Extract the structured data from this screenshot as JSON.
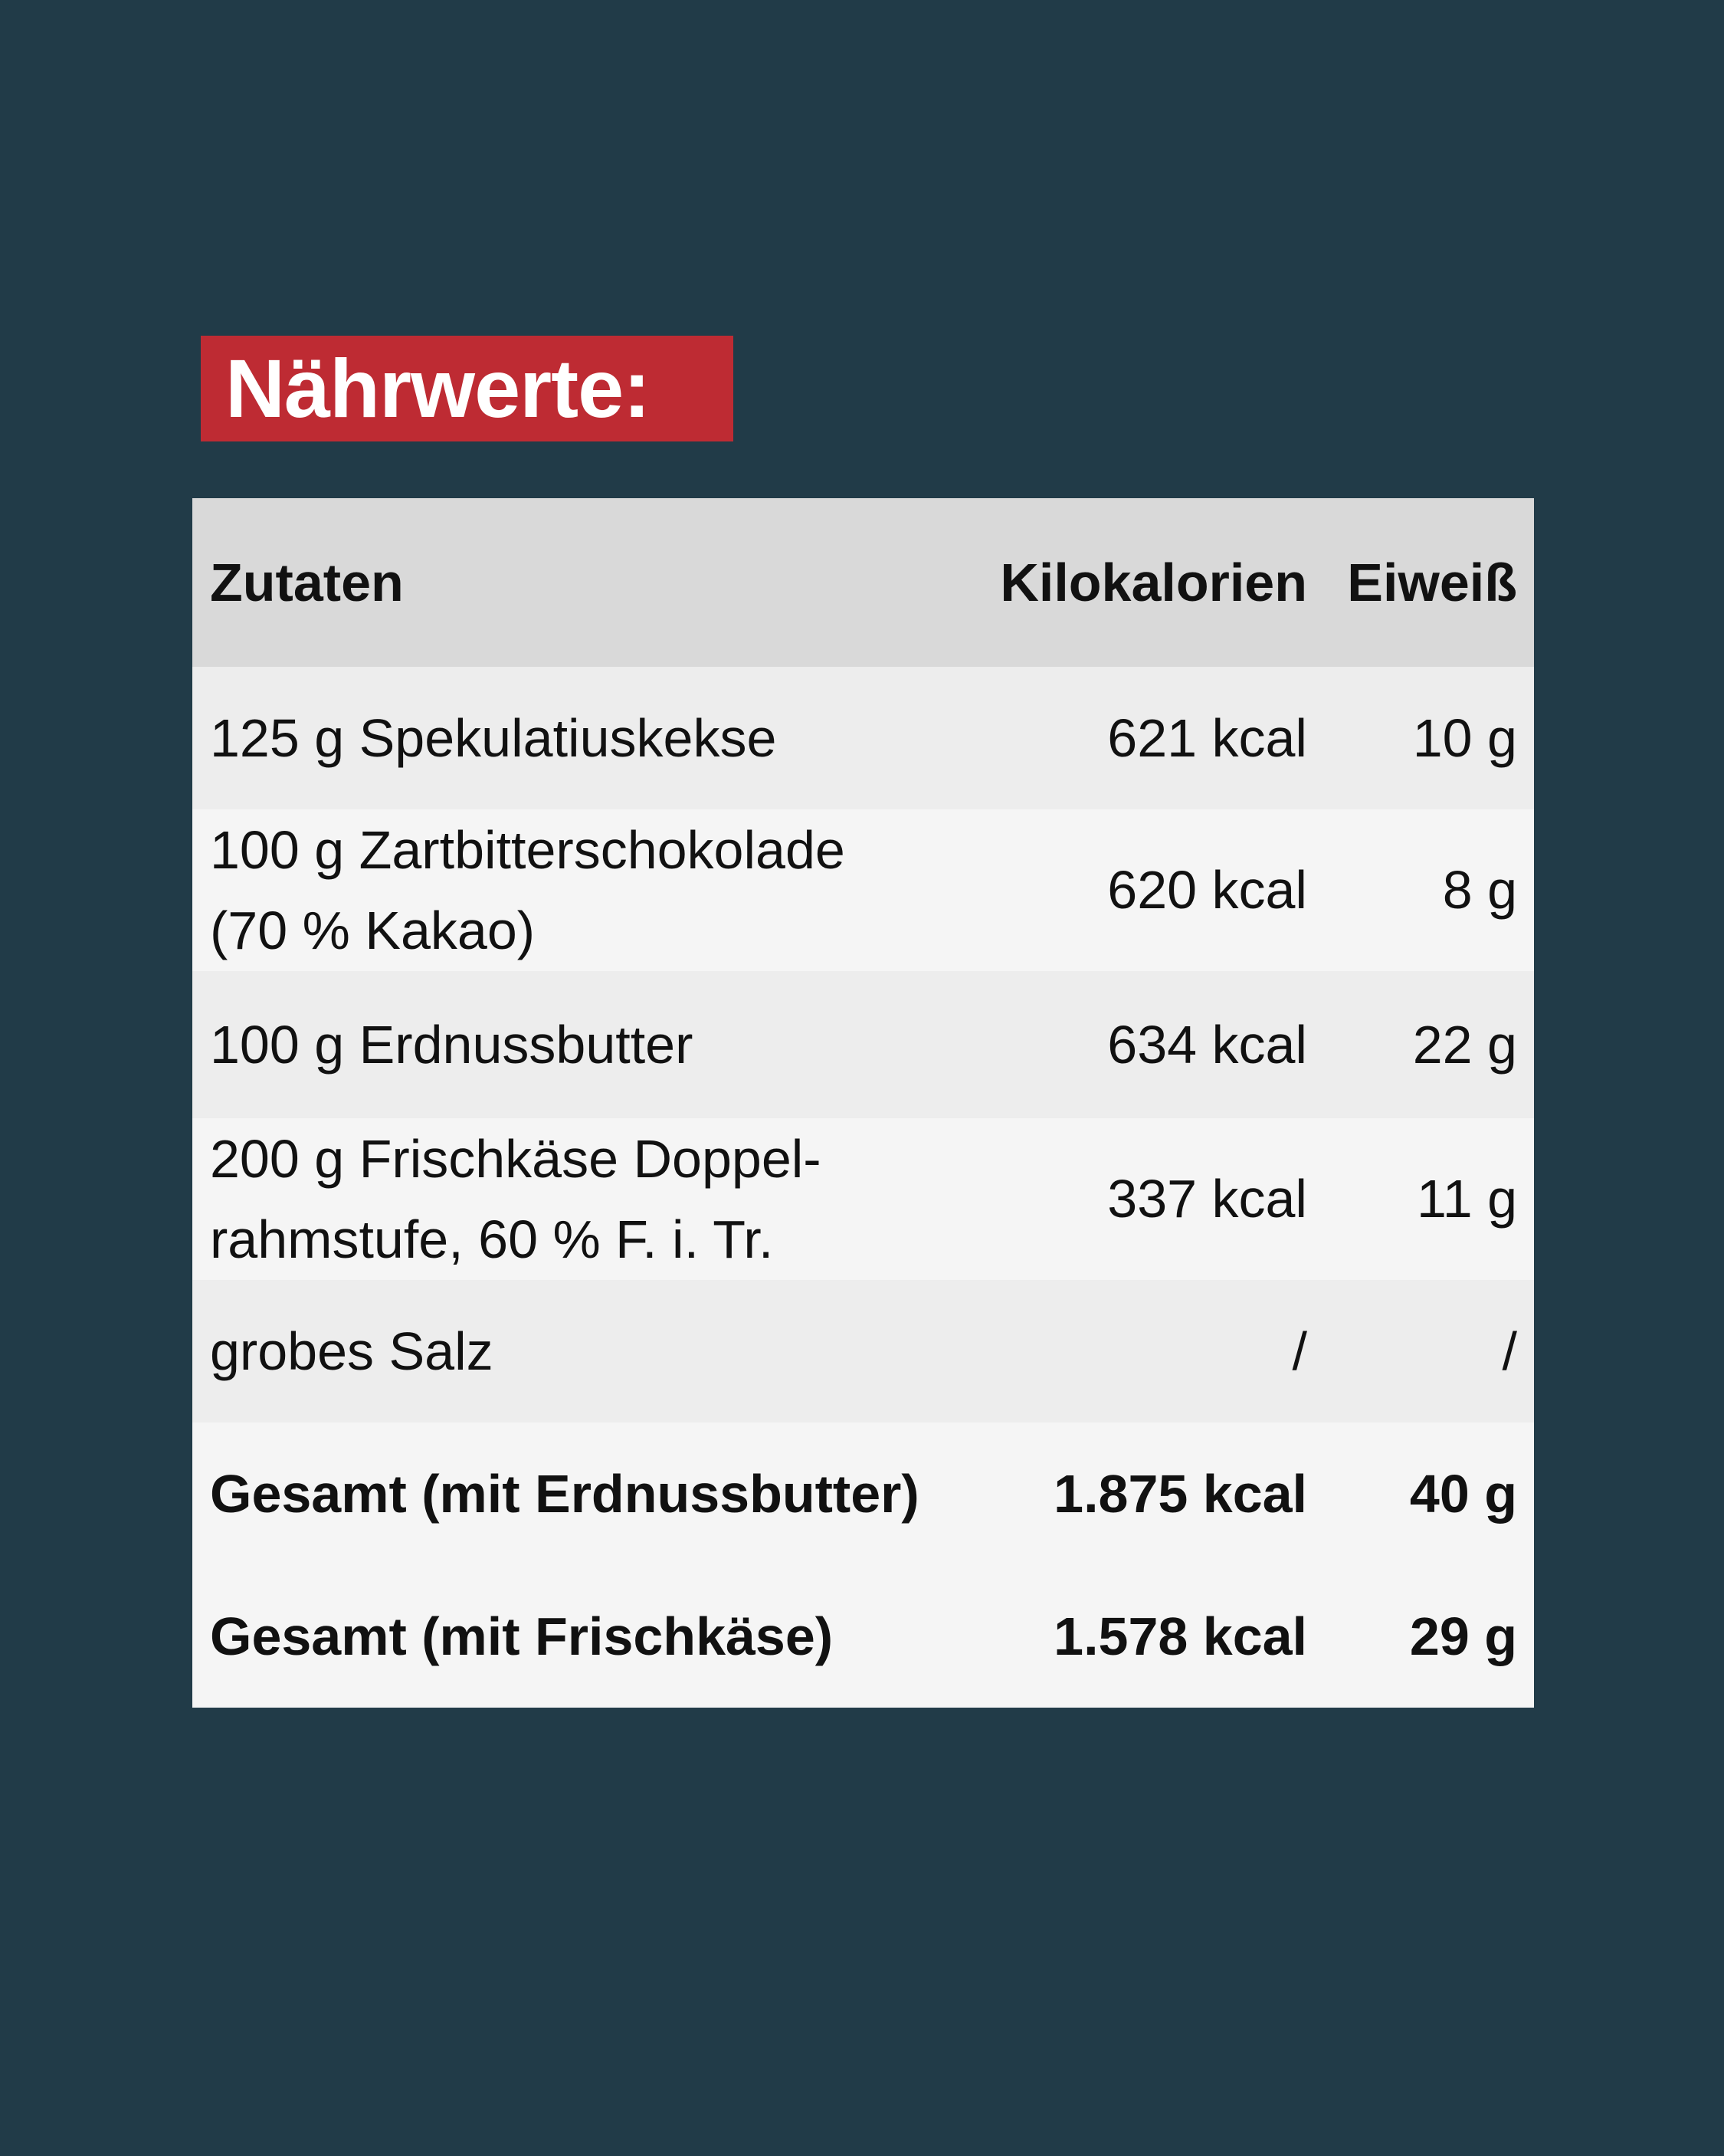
{
  "title": "Nährwerte:",
  "colors": {
    "background": "#213b48",
    "title_badge": "#be2b33",
    "header_row": "#d9d9d9",
    "row_odd": "#ededed",
    "row_even": "#f5f5f5"
  },
  "table": {
    "headers": {
      "name": "Zutaten",
      "kcal": "Kilokalorien",
      "protein": "Eiweiß"
    },
    "rows": [
      {
        "name": "125 g Spekulatiuskekse",
        "kcal": "621 kcal",
        "protein": "10 g"
      },
      {
        "name": "100 g Zartbitterschokolade\n(70 % Kakao)",
        "kcal": "620 kcal",
        "protein": "8 g"
      },
      {
        "name": "100 g Erdnussbutter",
        "kcal": "634 kcal",
        "protein": "22 g"
      },
      {
        "name": "200 g Frischkäse Doppel-\nrahmstufe, 60 % F. i. Tr.",
        "kcal": "337 kcal",
        "protein": "11 g"
      },
      {
        "name": "grobes Salz",
        "kcal": "/",
        "protein": "/"
      }
    ],
    "totals": [
      {
        "name": "Gesamt (mit Erdnussbutter)",
        "kcal": "1.875 kcal",
        "protein": "40 g"
      },
      {
        "name": "Gesamt (mit Frischkäse)",
        "kcal": "1.578 kcal",
        "protein": "29 g"
      }
    ]
  }
}
